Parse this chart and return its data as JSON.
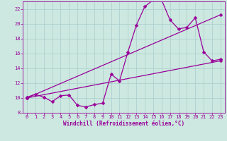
{
  "xlabel": "Windchill (Refroidissement éolien,°C)",
  "bg_color": "#cce8e0",
  "grid_color": "#aacccc",
  "line_color": "#990099",
  "xlim": [
    -0.5,
    23.5
  ],
  "ylim": [
    8,
    23
  ],
  "xticks": [
    0,
    1,
    2,
    3,
    4,
    5,
    6,
    7,
    8,
    9,
    10,
    11,
    12,
    13,
    14,
    15,
    16,
    17,
    18,
    19,
    20,
    21,
    22,
    23
  ],
  "yticks": [
    8,
    10,
    12,
    14,
    16,
    18,
    20,
    22
  ],
  "line1_x": [
    0,
    1,
    2,
    3,
    4,
    5,
    6,
    7,
    8,
    9,
    10,
    11,
    12,
    13,
    14,
    15,
    16,
    17,
    18,
    19,
    20,
    21,
    22,
    23
  ],
  "line1_y": [
    10.1,
    10.5,
    10.1,
    9.5,
    10.3,
    10.4,
    9.0,
    8.8,
    9.1,
    9.3,
    13.2,
    12.3,
    16.2,
    19.8,
    22.3,
    23.2,
    23.2,
    20.5,
    19.3,
    19.5,
    20.8,
    16.2,
    15.0,
    15.2
  ],
  "line2_x": [
    0,
    23
  ],
  "line2_y": [
    10.0,
    15.0
  ],
  "line3_x": [
    0,
    23
  ],
  "line3_y": [
    10.0,
    21.2
  ],
  "markersize": 2.5,
  "linewidth": 0.9,
  "xlabel_fontsize": 5.5,
  "tick_fontsize": 5.0
}
